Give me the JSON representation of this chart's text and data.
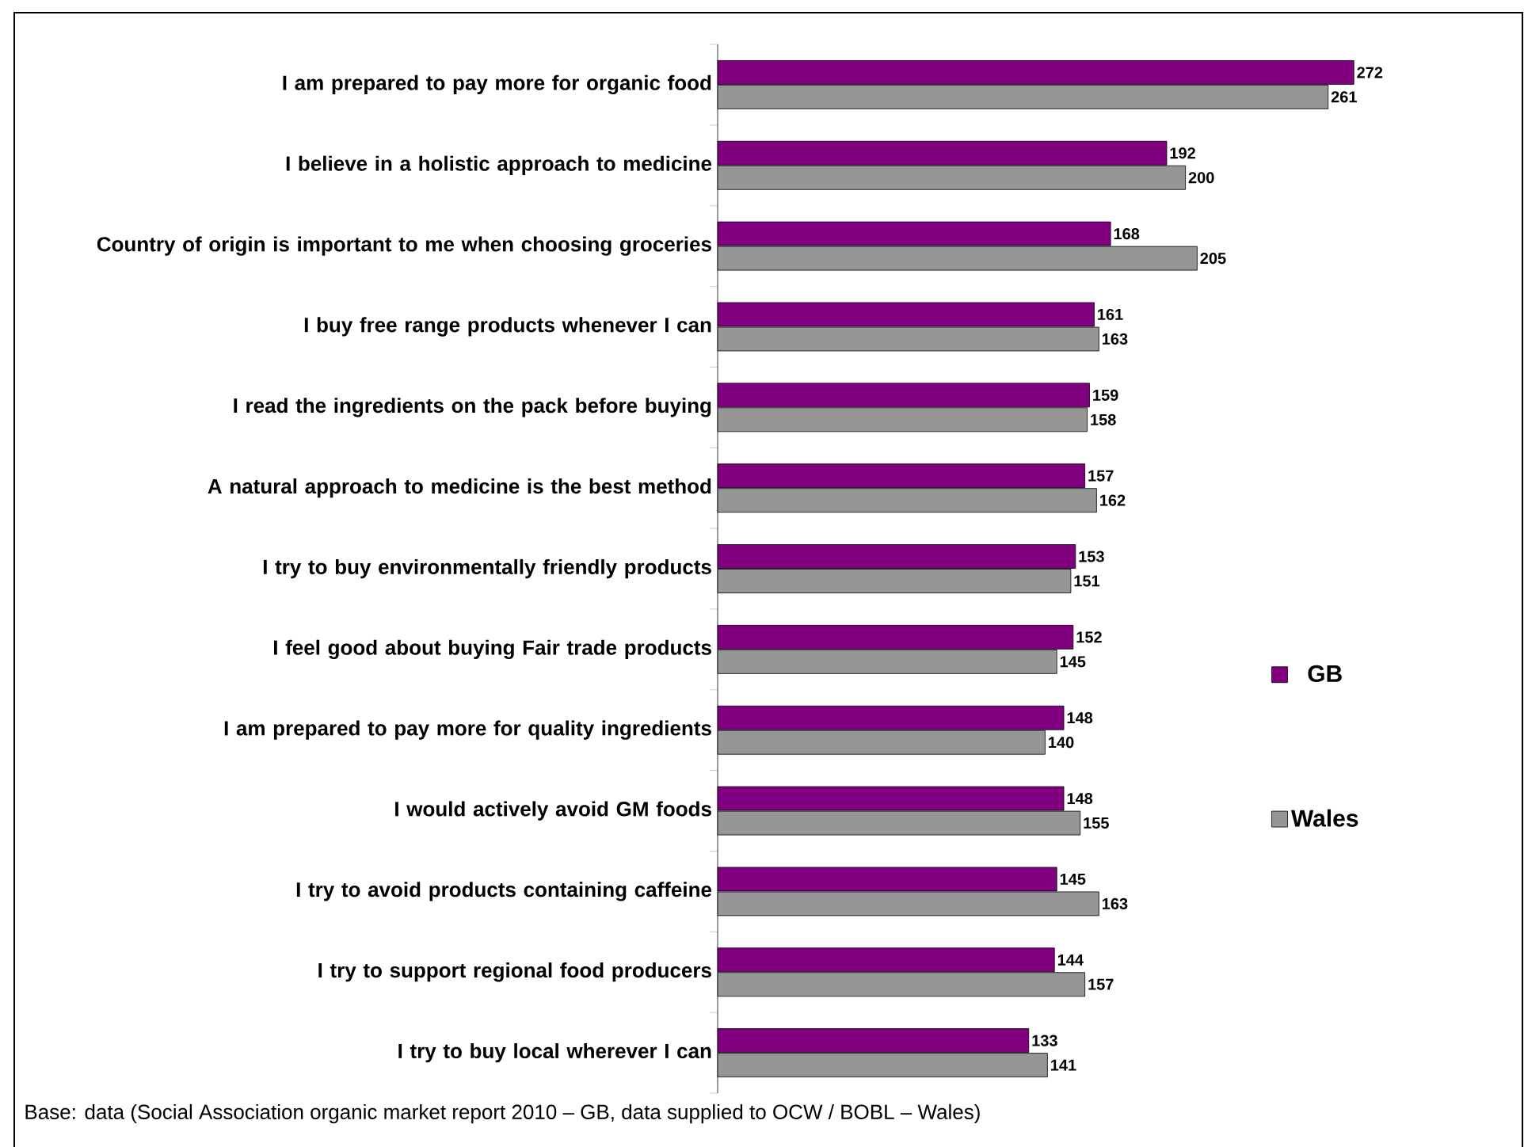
{
  "chart_data": {
    "type": "bar",
    "orientation": "horizontal",
    "data_labels": true,
    "legend": "right",
    "categories": [
      "I am prepared to pay more for organic food",
      "I believe in a holistic approach to medicine",
      "Country of origin is important to me when choosing groceries",
      "I buy free range products whenever I can",
      "I read the ingredients on the pack before buying",
      "A natural approach to medicine is the best method",
      "I try to buy environmentally friendly products",
      "I feel good about buying Fair trade products",
      "I am prepared to pay more for quality ingredients",
      "I would actively avoid GM foods",
      "I try to avoid products containing caffeine",
      "I try to support regional food producers",
      "I try to buy local wherever I can"
    ],
    "series": [
      {
        "name": "GB",
        "color": "#800080",
        "values": [
          272,
          192,
          168,
          161,
          159,
          157,
          153,
          152,
          148,
          148,
          145,
          144,
          133
        ]
      },
      {
        "name": "Wales",
        "color": "#969696",
        "values": [
          261,
          200,
          205,
          163,
          158,
          162,
          151,
          145,
          140,
          155,
          163,
          157,
          141
        ]
      }
    ],
    "annotations": [
      "Base: data (Social Association organic market report  2010 – GB, data supplied to OCW / BOBL – Wales)"
    ]
  }
}
